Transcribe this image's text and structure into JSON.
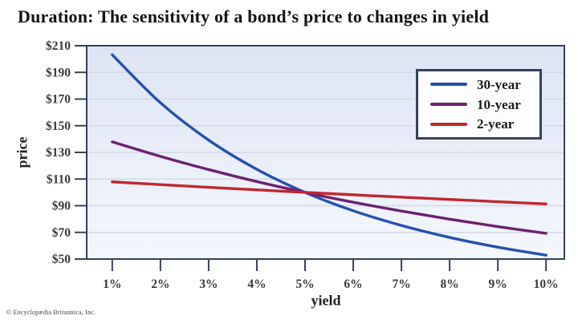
{
  "title": "Duration: The sensitivity of a bond’s price to changes in yield",
  "copyright": "© Encyclopædia Britannica, Inc.",
  "chart_data": {
    "type": "line",
    "title": "Duration: The sensitivity of a bond’s price to changes in yield",
    "xlabel": "yield",
    "ylabel": "price",
    "x": [
      1,
      2,
      3,
      4,
      5,
      6,
      7,
      8,
      9,
      10
    ],
    "x_tick_labels": [
      "1%",
      "2%",
      "3%",
      "4%",
      "5%",
      "6%",
      "7%",
      "8%",
      "9%",
      "10%"
    ],
    "y_ticks": [
      50,
      70,
      90,
      110,
      130,
      150,
      170,
      190,
      210
    ],
    "y_tick_labels": [
      "$50",
      "$70",
      "$90",
      "$110",
      "$130",
      "$150",
      "$170",
      "$190",
      "$210"
    ],
    "xlim": [
      0.47,
      10.38
    ],
    "ylim": [
      50,
      210
    ],
    "grid": "horizontal",
    "legend_position": "upper-right",
    "series": [
      {
        "name": "30-year",
        "color": "#2351b0",
        "values": [
          203.2,
          167.2,
          139.2,
          117.3,
          100.0,
          86.2,
          75.2,
          66.2,
          58.9,
          52.9
        ]
      },
      {
        "name": "10-year",
        "color": "#6d2170",
        "values": [
          137.9,
          127.0,
          117.1,
          108.1,
          100.0,
          92.6,
          86.0,
          79.9,
          74.3,
          69.3
        ]
      },
      {
        "name": "2-year",
        "color": "#c1272d",
        "values": [
          107.9,
          105.8,
          103.8,
          101.9,
          100.0,
          98.2,
          96.4,
          94.7,
          93.0,
          91.3
        ]
      }
    ],
    "colors": {
      "plot_bg_top": "#dde4f4",
      "plot_bg_bottom": "#f4f7fc",
      "grid": "#d2d8e8",
      "border": "#33415f",
      "tick_text": "#3a3a3a",
      "title_text": "#141414"
    }
  }
}
